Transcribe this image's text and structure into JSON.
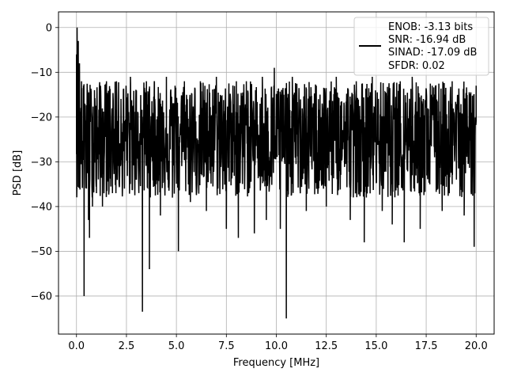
{
  "chart_data": {
    "type": "line",
    "title": "",
    "xlabel": "Frequency [MHz]",
    "ylabel": "PSD [dB]",
    "xlim": [
      -0.9,
      20.9
    ],
    "ylim": [
      -68.5,
      3.5
    ],
    "x_ticks": [
      0.0,
      2.5,
      5.0,
      7.5,
      10.0,
      12.5,
      15.0,
      17.5,
      20.0
    ],
    "x_tick_labels": [
      "0.0",
      "2.5",
      "5.0",
      "7.5",
      "10.0",
      "12.5",
      "15.0",
      "17.5",
      "20.0"
    ],
    "y_ticks": [
      0,
      -10,
      -20,
      -30,
      -40,
      -50,
      -60
    ],
    "y_tick_labels": [
      "0",
      "−10",
      "−20",
      "−30",
      "−40",
      "−50",
      "−60"
    ],
    "grid": true,
    "legend_position": "top-right",
    "series": [
      {
        "name": "ENOB: -3.13 bits\nSNR: -16.94 dB\nSINAD: -17.09 dB\nSFDR: 0.02",
        "color": "#000000",
        "noise_floor": {
          "x_range": [
            0.0,
            20.0
          ],
          "y_range": [
            -38,
            -12
          ],
          "median": -24
        },
        "points": [
          [
            0.0,
            -6
          ],
          [
            0.03,
            0.0
          ],
          [
            0.06,
            -14
          ],
          [
            0.09,
            -3
          ],
          [
            0.12,
            -18
          ],
          [
            0.15,
            -8
          ],
          [
            0.2,
            -24
          ],
          [
            0.25,
            -12
          ],
          [
            0.3,
            -35
          ],
          [
            0.35,
            -13
          ],
          [
            0.38,
            -60
          ],
          [
            0.42,
            -17
          ],
          [
            0.5,
            -36
          ],
          [
            0.55,
            -14
          ],
          [
            0.6,
            -43
          ],
          [
            0.65,
            -47
          ],
          [
            0.7,
            -15
          ],
          [
            0.8,
            -40
          ],
          [
            0.9,
            -14
          ],
          [
            1.0,
            -37
          ],
          [
            1.2,
            -13
          ],
          [
            1.3,
            -40
          ],
          [
            1.5,
            -12
          ],
          [
            1.8,
            -37
          ],
          [
            2.0,
            -12
          ],
          [
            2.4,
            -36
          ],
          [
            2.7,
            -11
          ],
          [
            3.0,
            -34
          ],
          [
            3.3,
            -63.5
          ],
          [
            3.5,
            -12
          ],
          [
            3.65,
            -54
          ],
          [
            3.9,
            -12
          ],
          [
            4.2,
            -42
          ],
          [
            4.5,
            -11
          ],
          [
            4.8,
            -38
          ],
          [
            5.1,
            -50
          ],
          [
            5.4,
            -12
          ],
          [
            5.7,
            -39
          ],
          [
            6.2,
            -12
          ],
          [
            6.5,
            -41
          ],
          [
            7.0,
            -11
          ],
          [
            7.5,
            -45
          ],
          [
            8.0,
            -12
          ],
          [
            8.1,
            -47
          ],
          [
            8.5,
            -12
          ],
          [
            8.9,
            -46
          ],
          [
            9.3,
            -11
          ],
          [
            9.5,
            -43
          ],
          [
            9.9,
            -9
          ],
          [
            10.2,
            -45
          ],
          [
            10.5,
            -65
          ],
          [
            10.8,
            -11
          ],
          [
            11.5,
            -41
          ],
          [
            12.0,
            -13
          ],
          [
            12.5,
            -40
          ],
          [
            13.0,
            -11
          ],
          [
            13.7,
            -43
          ],
          [
            14.0,
            -12
          ],
          [
            14.4,
            -48
          ],
          [
            14.8,
            -11
          ],
          [
            15.3,
            -41
          ],
          [
            15.8,
            -44
          ],
          [
            16.2,
            -12
          ],
          [
            16.4,
            -48
          ],
          [
            16.8,
            -11
          ],
          [
            17.2,
            -45
          ],
          [
            17.8,
            -13
          ],
          [
            18.3,
            -41
          ],
          [
            18.8,
            -12
          ],
          [
            19.4,
            -42
          ],
          [
            19.9,
            -49
          ],
          [
            20.0,
            -13
          ]
        ]
      }
    ],
    "legend_lines": [
      "ENOB: -3.13 bits",
      "SNR: -16.94 dB",
      "SINAD: -17.09 dB",
      "SFDR: 0.02"
    ]
  }
}
